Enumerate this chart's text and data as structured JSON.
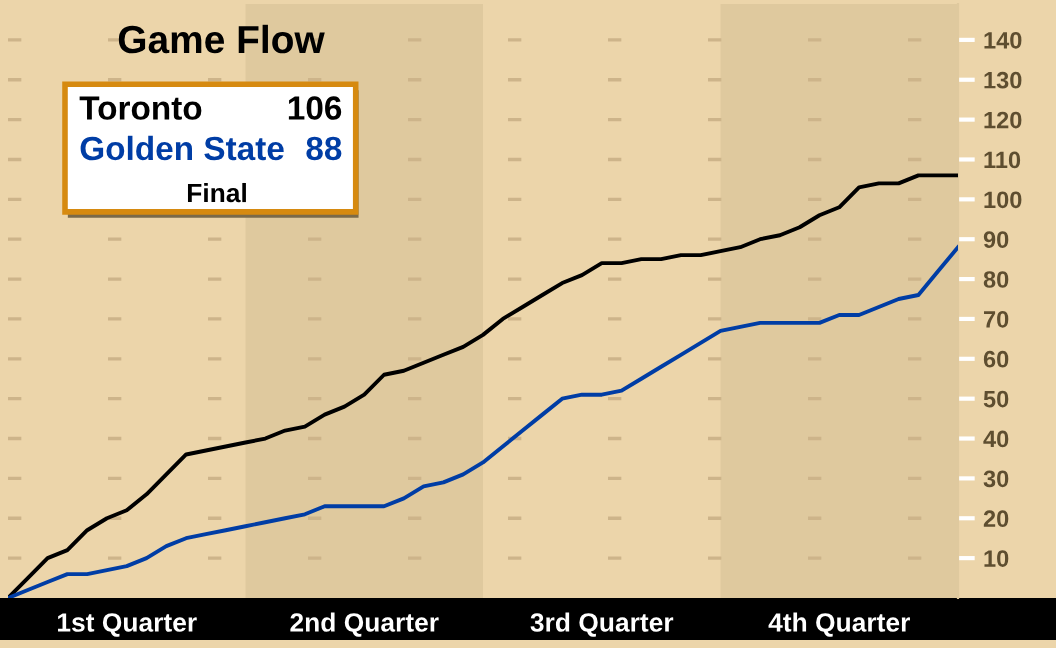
{
  "chart_data": {
    "type": "line",
    "title": "Game Flow",
    "categories": [
      null,
      null,
      null,
      null,
      null,
      null,
      null,
      null,
      null,
      null,
      null,
      null,
      null,
      null,
      null,
      null,
      null,
      null,
      null,
      null,
      null,
      null,
      null,
      null,
      null,
      null,
      null,
      null,
      null,
      null,
      null,
      null,
      null,
      null,
      null,
      null,
      null,
      null,
      null,
      null,
      null,
      null,
      null,
      null,
      null,
      null,
      null,
      null,
      null
    ],
    "series": [
      {
        "name": "Toronto",
        "color": "#000000",
        "values": [
          0,
          5,
          10,
          12,
          17,
          20,
          22,
          26,
          31,
          36,
          37,
          38,
          39,
          40,
          42,
          43,
          46,
          48,
          51,
          56,
          57,
          59,
          61,
          63,
          66,
          70,
          73,
          76,
          79,
          81,
          84,
          84,
          85,
          85,
          86,
          86,
          87,
          88,
          90,
          91,
          93,
          96,
          98,
          103,
          104,
          104,
          106,
          106,
          106
        ]
      },
      {
        "name": "Golden State",
        "color": "#003da5",
        "values": [
          0,
          2,
          4,
          6,
          6,
          7,
          8,
          10,
          13,
          15,
          16,
          17,
          18,
          19,
          20,
          21,
          23,
          23,
          23,
          23,
          25,
          28,
          29,
          31,
          34,
          38,
          42,
          46,
          50,
          51,
          51,
          52,
          55,
          58,
          61,
          64,
          67,
          68,
          69,
          69,
          69,
          69,
          71,
          71,
          73,
          75,
          76,
          82,
          88
        ]
      }
    ],
    "annotations": [
      "106",
      "88",
      "Final",
      "1st Quarter",
      "2nd Quarter",
      "3rd Quarter",
      "4th Quarter"
    ],
    "tick_labels": "y",
    "ylim": [
      0,
      149
    ],
    "yticks": [
      10,
      20,
      30,
      40,
      50,
      60,
      70,
      80,
      90,
      100,
      110,
      120,
      130,
      140
    ],
    "grid": "y",
    "line_style": "solid",
    "marker": "none"
  }
}
